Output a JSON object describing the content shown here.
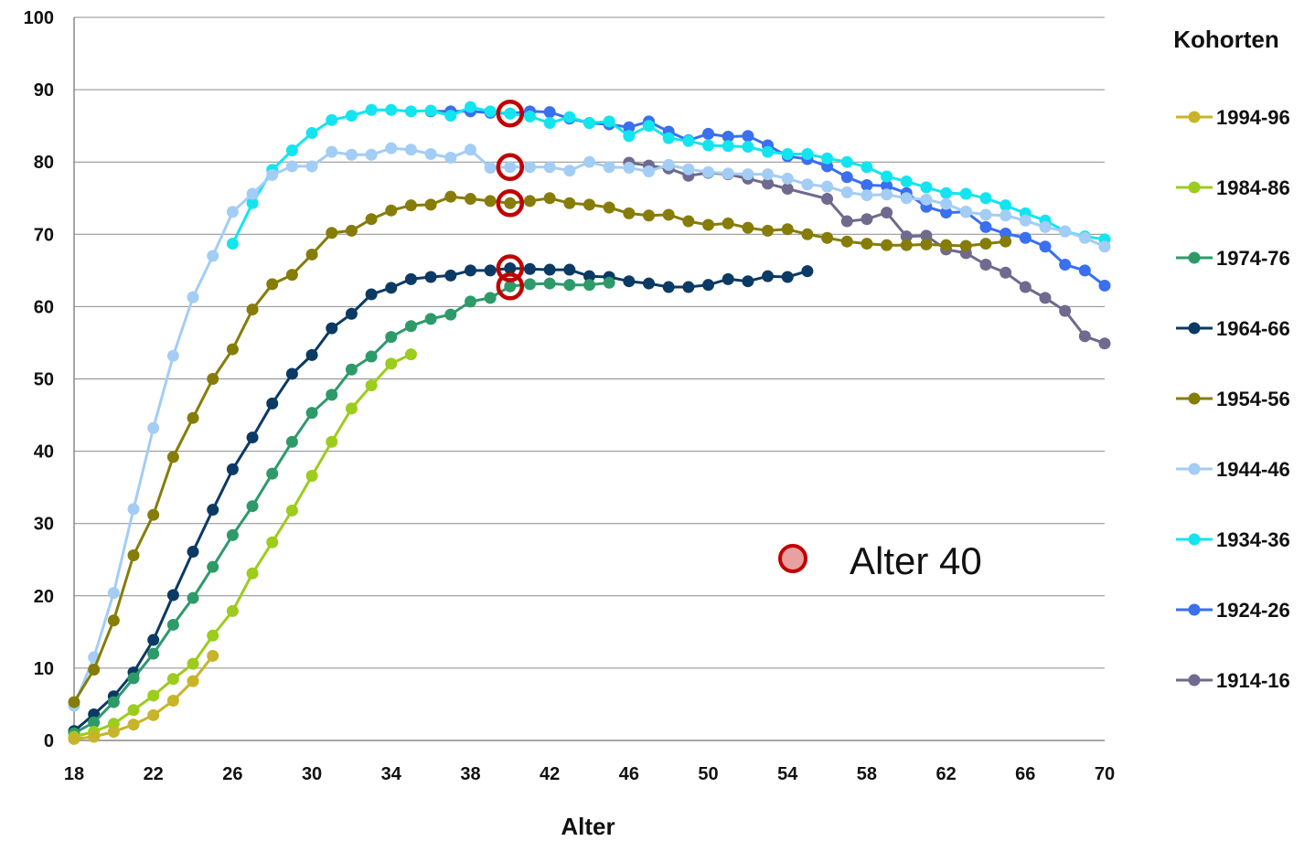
{
  "chart_data": {
    "type": "line",
    "xlabel": "Alter",
    "ylabel": "",
    "xlim": [
      18,
      70
    ],
    "ylim": [
      0,
      100
    ],
    "x_ticks": [
      18,
      22,
      26,
      30,
      34,
      38,
      42,
      46,
      50,
      54,
      58,
      62,
      66,
      70
    ],
    "y_ticks": [
      0,
      10,
      20,
      30,
      40,
      50,
      60,
      70,
      80,
      90,
      100
    ],
    "grid": "horizontal",
    "legend_title": "Kohorten",
    "legend_position": "right",
    "annotation": {
      "label": "Alter 40",
      "x": 40,
      "marker_color": "#c00000",
      "marker_fill": "#e8a0a0"
    },
    "highlight_points": [
      {
        "x": 40,
        "y": 86.7
      },
      {
        "x": 40,
        "y": 79.3
      },
      {
        "x": 40,
        "y": 74.3
      },
      {
        "x": 40,
        "y": 65.3
      },
      {
        "x": 40,
        "y": 62.8
      }
    ],
    "series": [
      {
        "name": "1994-96",
        "color": "#c8b428",
        "x": [
          18,
          19,
          20,
          21,
          22,
          23,
          24,
          25
        ],
        "y": [
          0.2,
          0.5,
          1.2,
          2.2,
          3.5,
          5.5,
          8.2,
          11.7
        ]
      },
      {
        "name": "1984-86",
        "color": "#9ccc1c",
        "x": [
          18,
          19,
          20,
          21,
          22,
          23,
          24,
          25,
          26,
          27,
          28,
          29,
          30,
          31,
          32,
          33,
          34,
          35
        ],
        "y": [
          0.5,
          1.2,
          2.3,
          4.2,
          6.2,
          8.5,
          10.6,
          14.5,
          17.9,
          23.1,
          27.4,
          31.8,
          36.6,
          41.3,
          45.9,
          49.1,
          52.1,
          53.4
        ]
      },
      {
        "name": "1974-76",
        "color": "#2e9a6a",
        "x": [
          18,
          19,
          20,
          21,
          22,
          23,
          24,
          25,
          26,
          27,
          28,
          29,
          30,
          31,
          32,
          33,
          34,
          35,
          36,
          37,
          38,
          39,
          40,
          41,
          42,
          43,
          44,
          45
        ],
        "y": [
          1.0,
          2.5,
          5.3,
          8.6,
          12.0,
          16.0,
          19.7,
          24.0,
          28.4,
          32.4,
          36.9,
          41.3,
          45.3,
          47.8,
          51.3,
          53.1,
          55.8,
          57.3,
          58.3,
          58.9,
          60.7,
          61.2,
          62.8,
          63.1,
          63.2,
          63.0,
          63.0,
          63.3
        ]
      },
      {
        "name": "1964-66",
        "color": "#0b3a64",
        "x": [
          18,
          19,
          20,
          21,
          22,
          23,
          24,
          25,
          26,
          27,
          28,
          29,
          30,
          31,
          32,
          33,
          34,
          35,
          36,
          37,
          38,
          39,
          40,
          41,
          42,
          43,
          44,
          45,
          46,
          47,
          48,
          49,
          50,
          51,
          52,
          53,
          54,
          55
        ],
        "y": [
          1.3,
          3.6,
          6.1,
          9.4,
          13.9,
          20.1,
          26.1,
          31.9,
          37.5,
          41.9,
          46.6,
          50.7,
          53.3,
          57.0,
          59.0,
          61.7,
          62.6,
          63.8,
          64.1,
          64.3,
          65.0,
          65.0,
          65.3,
          65.2,
          65.1,
          65.1,
          64.2,
          64.1,
          63.5,
          63.2,
          62.7,
          62.7,
          63.0,
          63.8,
          63.5,
          64.2,
          64.1,
          64.9
        ]
      },
      {
        "name": "1954-56",
        "color": "#857d08",
        "x": [
          18,
          19,
          20,
          21,
          22,
          23,
          24,
          25,
          26,
          27,
          28,
          29,
          30,
          31,
          32,
          33,
          34,
          35,
          36,
          37,
          38,
          39,
          40,
          41,
          42,
          43,
          44,
          45,
          46,
          47,
          48,
          49,
          50,
          51,
          52,
          53,
          54,
          55,
          56,
          57,
          58,
          59,
          60,
          61,
          62,
          63,
          64,
          65
        ],
        "y": [
          5.3,
          9.8,
          16.6,
          25.6,
          31.2,
          39.2,
          44.6,
          50.0,
          54.1,
          59.6,
          63.1,
          64.4,
          67.2,
          70.2,
          70.5,
          72.1,
          73.3,
          74.0,
          74.1,
          75.2,
          74.9,
          74.6,
          74.3,
          74.6,
          75.0,
          74.3,
          74.1,
          73.7,
          72.9,
          72.6,
          72.7,
          71.8,
          71.3,
          71.5,
          70.9,
          70.5,
          70.7,
          70.0,
          69.5,
          69.0,
          68.7,
          68.5,
          68.5,
          68.6,
          68.5,
          68.4,
          68.7,
          69.0
        ]
      },
      {
        "name": "1944-46",
        "color": "#a3cdf5",
        "x": [
          18,
          19,
          20,
          21,
          22,
          23,
          24,
          25,
          26,
          27,
          28,
          29,
          30,
          31,
          32,
          33,
          34,
          35,
          36,
          37,
          38,
          39,
          40,
          41,
          42,
          43,
          44,
          45,
          46,
          47,
          48,
          49,
          50,
          51,
          52,
          53,
          54,
          55,
          56,
          57,
          58,
          59,
          60,
          61,
          62,
          63,
          64,
          65,
          66,
          67,
          68,
          69,
          70
        ],
        "y": [
          4.8,
          11.5,
          20.4,
          32.0,
          43.2,
          53.2,
          61.3,
          67.0,
          73.1,
          75.6,
          78.2,
          79.4,
          79.4,
          81.4,
          81.0,
          81.0,
          81.9,
          81.7,
          81.1,
          80.6,
          81.7,
          79.2,
          79.3,
          79.3,
          79.3,
          78.8,
          80.0,
          79.3,
          79.2,
          78.7,
          79.6,
          79.0,
          78.6,
          78.4,
          78.3,
          78.3,
          77.7,
          76.9,
          76.6,
          75.8,
          75.4,
          75.5,
          75.0,
          74.8,
          74.2,
          73.1,
          72.7,
          72.6,
          71.9,
          71.0,
          70.4,
          69.5,
          68.3
        ]
      },
      {
        "name": "1934-36",
        "color": "#12e5ef",
        "x": [
          26,
          27,
          28,
          29,
          30,
          31,
          32,
          33,
          34,
          35,
          36,
          37,
          38,
          39,
          40,
          41,
          42,
          43,
          44,
          45,
          46,
          47,
          48,
          49,
          50,
          51,
          52,
          53,
          54,
          55,
          56,
          57,
          58,
          59,
          60,
          61,
          62,
          63,
          64,
          65,
          66,
          67,
          68,
          69,
          70
        ],
        "y": [
          68.7,
          74.3,
          78.9,
          81.6,
          84.0,
          85.8,
          86.4,
          87.2,
          87.2,
          87.0,
          87.1,
          86.4,
          87.6,
          87.0,
          86.7,
          86.3,
          85.4,
          86.2,
          85.4,
          85.6,
          83.6,
          85.0,
          83.3,
          82.9,
          82.3,
          82.2,
          82.1,
          81.4,
          81.1,
          81.1,
          80.5,
          80.0,
          79.3,
          78.0,
          77.3,
          76.5,
          75.7,
          75.6,
          75.0,
          74.0,
          72.9,
          71.9,
          70.4,
          69.7,
          69.3
        ]
      },
      {
        "name": "1924-26",
        "color": "#3a6fee",
        "x": [
          36,
          37,
          38,
          39,
          40,
          41,
          42,
          43,
          44,
          45,
          46,
          47,
          48,
          49,
          50,
          51,
          52,
          53,
          54,
          55,
          56,
          57,
          58,
          59,
          60,
          61,
          62,
          63,
          64,
          65,
          66,
          67,
          68,
          69,
          70
        ],
        "y": [
          87.0,
          87.0,
          87.0,
          86.8,
          86.7,
          87.0,
          86.9,
          86.0,
          85.4,
          85.2,
          84.8,
          85.6,
          84.2,
          83.0,
          83.9,
          83.5,
          83.6,
          82.3,
          80.8,
          80.4,
          79.4,
          77.9,
          76.8,
          76.7,
          75.7,
          73.8,
          73.0,
          73.1,
          71.0,
          70.1,
          69.5,
          68.3,
          65.8,
          65.0,
          62.9
        ]
      },
      {
        "name": "1914-16",
        "color": "#6f6a8e",
        "x": [
          46,
          47,
          48,
          49,
          50,
          51,
          52,
          53,
          54,
          56,
          57,
          58,
          59,
          60,
          61,
          62,
          63,
          64,
          65,
          66,
          67,
          68,
          69,
          70
        ],
        "y": [
          79.9,
          79.5,
          79.1,
          78.1,
          78.5,
          78.3,
          77.7,
          77.0,
          76.3,
          74.9,
          71.8,
          72.1,
          73.0,
          69.7,
          69.8,
          67.9,
          67.4,
          65.8,
          64.7,
          62.7,
          61.2,
          59.4,
          55.9,
          54.9
        ]
      }
    ]
  }
}
